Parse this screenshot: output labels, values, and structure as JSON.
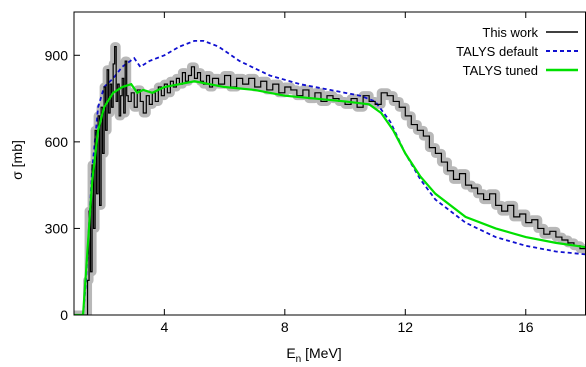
{
  "chart_data": {
    "type": "line",
    "xlabel": {
      "base": "E",
      "sub": "n",
      "rest": " [MeV]"
    },
    "ylabel": "σ [mb]",
    "xlim": [
      1,
      18
    ],
    "ylim": [
      0,
      1050
    ],
    "xticks": [
      4,
      8,
      12,
      16
    ],
    "yticks": [
      0,
      300,
      600,
      900
    ],
    "legend_position": "top-right",
    "series": [
      {
        "name": "This work",
        "style": "step",
        "color": "#000000",
        "uncertainty_band_color": "#b8b8b8",
        "x": [
          1.0,
          1.3,
          1.45,
          1.5,
          1.55,
          1.6,
          1.65,
          1.7,
          1.75,
          1.8,
          1.85,
          1.9,
          1.95,
          2.0,
          2.05,
          2.1,
          2.15,
          2.2,
          2.25,
          2.3,
          2.35,
          2.4,
          2.45,
          2.5,
          2.55,
          2.6,
          2.65,
          2.7,
          2.75,
          2.8,
          2.9,
          3.0,
          3.1,
          3.2,
          3.3,
          3.4,
          3.5,
          3.6,
          3.7,
          3.8,
          3.9,
          4.0,
          4.1,
          4.2,
          4.3,
          4.4,
          4.5,
          4.6,
          4.7,
          4.8,
          4.9,
          5.0,
          5.1,
          5.2,
          5.3,
          5.4,
          5.5,
          5.6,
          5.8,
          6.0,
          6.2,
          6.4,
          6.6,
          6.8,
          7.0,
          7.2,
          7.4,
          7.6,
          7.8,
          8.0,
          8.2,
          8.4,
          8.6,
          8.8,
          9.0,
          9.2,
          9.4,
          9.6,
          9.8,
          10.0,
          10.2,
          10.4,
          10.6,
          10.8,
          11.0,
          11.2,
          11.4,
          11.6,
          11.8,
          12.0,
          12.2,
          12.4,
          12.6,
          12.8,
          13.0,
          13.2,
          13.4,
          13.6,
          13.8,
          14.0,
          14.2,
          14.4,
          14.6,
          14.8,
          15.0,
          15.2,
          15.4,
          15.6,
          15.8,
          16.0,
          16.2,
          16.4,
          16.6,
          16.8,
          17.0,
          17.2,
          17.4,
          17.6,
          17.8,
          18.0
        ],
        "y": [
          0,
          0,
          120,
          360,
          150,
          520,
          300,
          640,
          420,
          690,
          380,
          720,
          560,
          790,
          640,
          850,
          700,
          800,
          720,
          870,
          930,
          740,
          800,
          690,
          760,
          820,
          700,
          880,
          760,
          740,
          770,
          720,
          780,
          740,
          700,
          760,
          730,
          770,
          740,
          790,
          760,
          800,
          770,
          810,
          790,
          820,
          800,
          840,
          810,
          830,
          860,
          820,
          840,
          810,
          800,
          830,
          790,
          820,
          800,
          830,
          790,
          820,
          800,
          820,
          790,
          810,
          780,
          800,
          770,
          790,
          780,
          760,
          780,
          750,
          770,
          740,
          760,
          750,
          740,
          730,
          750,
          720,
          760,
          740,
          730,
          770,
          760,
          740,
          720,
          690,
          660,
          640,
          620,
          580,
          560,
          530,
          500,
          470,
          490,
          450,
          440,
          420,
          400,
          420,
          380,
          360,
          380,
          340,
          350,
          320,
          330,
          300,
          280,
          290,
          270,
          260,
          250,
          240,
          230,
          210
        ]
      },
      {
        "name": "TALYS default",
        "style": "dashed",
        "color": "#1010d0",
        "x": [
          1.0,
          1.3,
          1.4,
          1.6,
          1.8,
          2.0,
          2.3,
          2.6,
          3.0,
          3.2,
          3.5,
          4.0,
          4.5,
          5.0,
          5.3,
          5.8,
          6.5,
          7.5,
          8.5,
          9.5,
          10.5,
          11.0,
          11.5,
          12.0,
          12.5,
          13.0,
          14.0,
          15.0,
          16.0,
          17.0,
          18.0
        ],
        "y": [
          0,
          0,
          120,
          500,
          720,
          790,
          820,
          860,
          890,
          860,
          880,
          900,
          930,
          950,
          950,
          930,
          880,
          830,
          800,
          780,
          760,
          740,
          670,
          560,
          470,
          400,
          320,
          270,
          240,
          220,
          210
        ]
      },
      {
        "name": "TALYS tuned",
        "style": "solid",
        "color": "#00e000",
        "x": [
          1.0,
          1.3,
          1.4,
          1.6,
          1.8,
          2.0,
          2.3,
          2.6,
          2.9,
          3.1,
          3.3,
          3.6,
          4.0,
          4.5,
          5.0,
          5.5,
          6.0,
          7.0,
          8.0,
          9.0,
          10.0,
          10.8,
          11.2,
          11.6,
          12.0,
          12.5,
          13.0,
          14.0,
          15.0,
          16.0,
          17.0,
          18.0
        ],
        "y": [
          0,
          0,
          150,
          460,
          640,
          720,
          770,
          790,
          800,
          770,
          780,
          770,
          790,
          800,
          810,
          800,
          790,
          780,
          760,
          750,
          740,
          730,
          700,
          640,
          560,
          480,
          420,
          340,
          300,
          270,
          250,
          235
        ]
      }
    ]
  }
}
